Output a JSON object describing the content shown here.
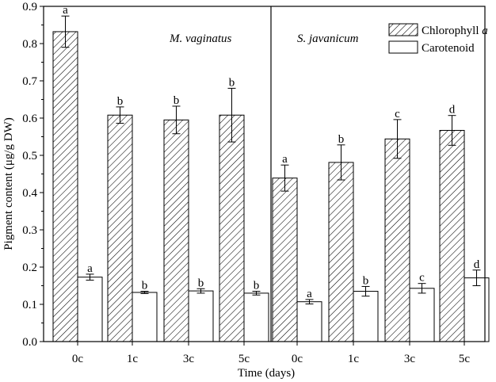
{
  "chart_data": {
    "type": "bar",
    "xlabel": "Time (days)",
    "ylabel": "Pigment content (μg/g DW)",
    "ylim": [
      0,
      0.9
    ],
    "yticks": [
      "0.0",
      "0.1",
      "0.2",
      "0.3",
      "0.4",
      "0.5",
      "0.6",
      "0.7",
      "0.8",
      "0.9"
    ],
    "grid": false,
    "legend_position": "top-right",
    "legend": {
      "chlorophyll_prefix": "Chlorophyll ",
      "chlorophyll_italic": "a",
      "carotenoid": "Carotenoid"
    },
    "series_styles": {
      "chlorophyll": {
        "fill": "hatched",
        "color": "#000000"
      },
      "carotenoid": {
        "fill": "white",
        "color": "#000000"
      }
    },
    "panels": [
      {
        "label": "M. vaginatus",
        "categories": [
          "0c",
          "1c",
          "3c",
          "5c"
        ],
        "chlorophyll": {
          "values": [
            0.832,
            0.608,
            0.595,
            0.608
          ],
          "errors": [
            0.042,
            0.022,
            0.037,
            0.072
          ],
          "letters": [
            "a",
            "b",
            "b",
            "b"
          ]
        },
        "carotenoid": {
          "values": [
            0.173,
            0.132,
            0.136,
            0.13
          ],
          "errors": [
            0.008,
            0.003,
            0.006,
            0.005
          ],
          "letters": [
            "a",
            "b",
            "b",
            "b"
          ]
        }
      },
      {
        "label": "S. javanicum",
        "categories": [
          "0c",
          "1c",
          "3c",
          "5c"
        ],
        "chlorophyll": {
          "values": [
            0.439,
            0.481,
            0.544,
            0.567
          ],
          "errors": [
            0.035,
            0.047,
            0.052,
            0.04
          ],
          "letters": [
            "a",
            "b",
            "c",
            "d"
          ]
        },
        "carotenoid": {
          "values": [
            0.107,
            0.135,
            0.143,
            0.171
          ],
          "errors": [
            0.006,
            0.013,
            0.013,
            0.021
          ],
          "letters": [
            "a",
            "b",
            "c",
            "d"
          ]
        }
      }
    ]
  }
}
